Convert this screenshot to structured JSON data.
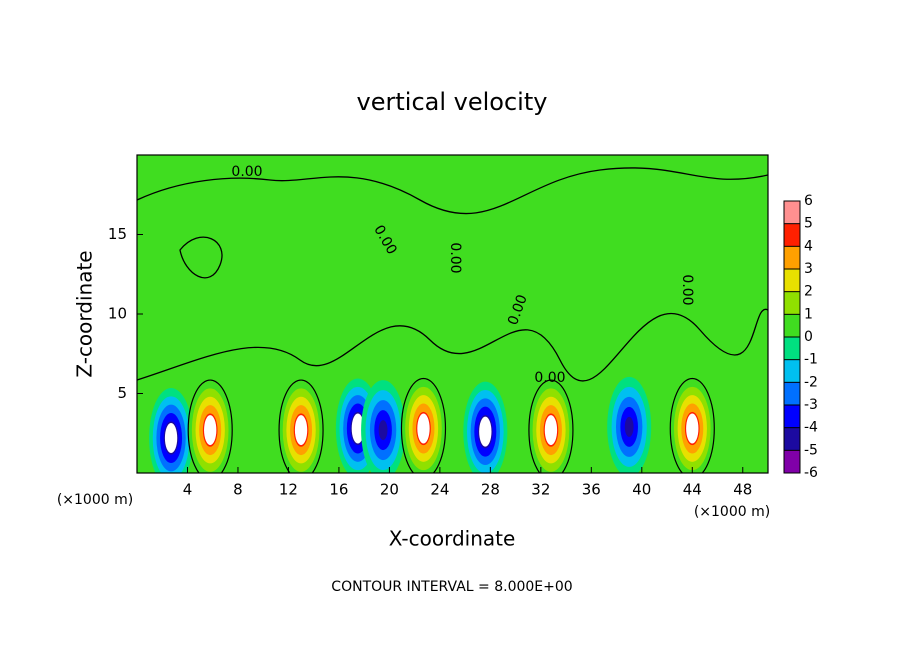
{
  "chart_data": {
    "type": "contour",
    "title": "vertical velocity",
    "x_label": "X-coordinate",
    "y_label": "Z-coordinate",
    "x_unit": "(×1000 m)",
    "y_unit": "(×1000 m)",
    "footer": "CONTOUR INTERVAL = 8.000E+00",
    "xlim": [
      0,
      50
    ],
    "ylim": [
      0,
      20
    ],
    "xticks": [
      4,
      8,
      12,
      16,
      20,
      24,
      28,
      32,
      36,
      40,
      44,
      48
    ],
    "yticks": [
      5,
      10,
      15
    ],
    "colorbar_ticks": [
      -6,
      -5,
      -4,
      -3,
      -2,
      -1,
      0,
      1,
      2,
      3,
      4,
      5,
      6
    ],
    "colors": [
      "#8000a8",
      "#1c0aa0",
      "#0000ff",
      "#0070ff",
      "#00c0f0",
      "#00e080",
      "#40dd20",
      "#90e000",
      "#e8e000",
      "#ffa000",
      "#ff2000",
      "#ff9090"
    ],
    "x": [
      2.7,
      5.8,
      13,
      17.5,
      19.5,
      22.7,
      27.6,
      32.8,
      39,
      44
    ],
    "z": [
      2.2,
      2.7,
      2.7,
      2.8,
      2.7,
      2.8,
      2.6,
      2.7,
      2.9,
      2.8
    ],
    "values": [
      -6,
      6,
      6,
      -6,
      -5,
      6,
      -6,
      6,
      -5,
      6
    ],
    "contour_labels": [
      "0.00",
      "0.00",
      "0.00",
      "0.00",
      "0.00",
      "0.00"
    ]
  }
}
